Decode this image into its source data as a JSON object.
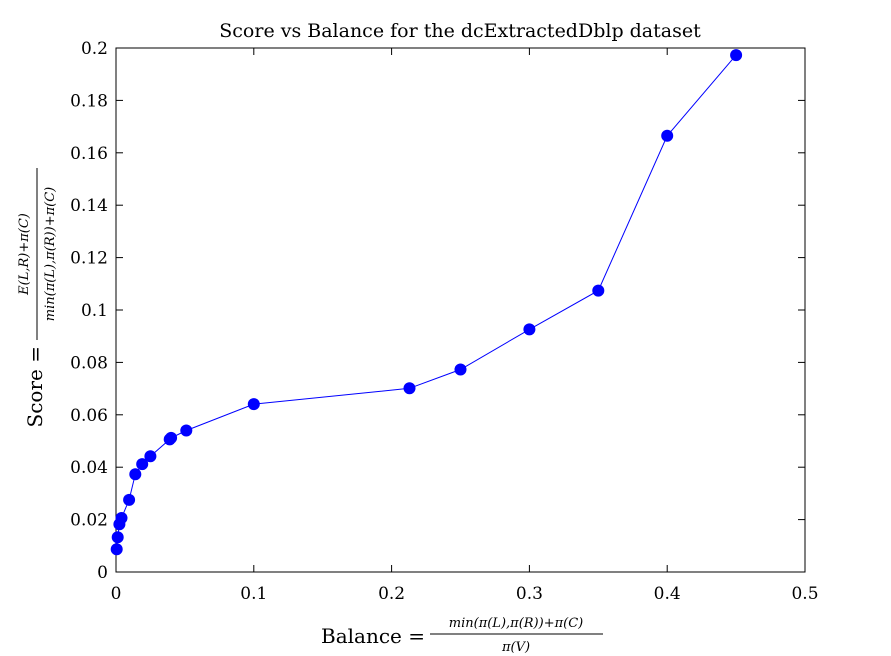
{
  "chart_data": {
    "type": "scatter",
    "title": "Score vs Balance for the dcExtractedDblp dataset",
    "xlabel": {
      "prefix": "Balance =",
      "numerator": "min(π(L),π(R))+π(C)",
      "denominator": "π(V)"
    },
    "ylabel": {
      "prefix": "Score =",
      "numerator": "E(L,R)+π(C)",
      "denominator": "min(π(L),π(R))+π(C)"
    },
    "xlim": [
      0,
      0.5
    ],
    "ylim": [
      0,
      0.2
    ],
    "xticks": [
      "0",
      "0.1",
      "0.2",
      "0.3",
      "0.4",
      "0.5"
    ],
    "yticks": [
      "0",
      "0.02",
      "0.04",
      "0.06",
      "0.08",
      "0.1",
      "0.12",
      "0.14",
      "0.16",
      "0.18",
      "0.2"
    ],
    "grid": false,
    "line_color": "#0000ff",
    "marker_color": "#0000ff",
    "x": [
      0.0005,
      0.0012,
      0.0025,
      0.004,
      0.0095,
      0.014,
      0.019,
      0.025,
      0.039,
      0.04,
      0.051,
      0.1,
      0.213,
      0.25,
      0.3,
      0.35,
      0.4,
      0.45
    ],
    "y": [
      0.0087,
      0.0133,
      0.0182,
      0.0206,
      0.0275,
      0.0373,
      0.0412,
      0.0442,
      0.0506,
      0.0512,
      0.054,
      0.0641,
      0.0701,
      0.0773,
      0.0926,
      0.1074,
      0.1665,
      0.1973
    ]
  }
}
